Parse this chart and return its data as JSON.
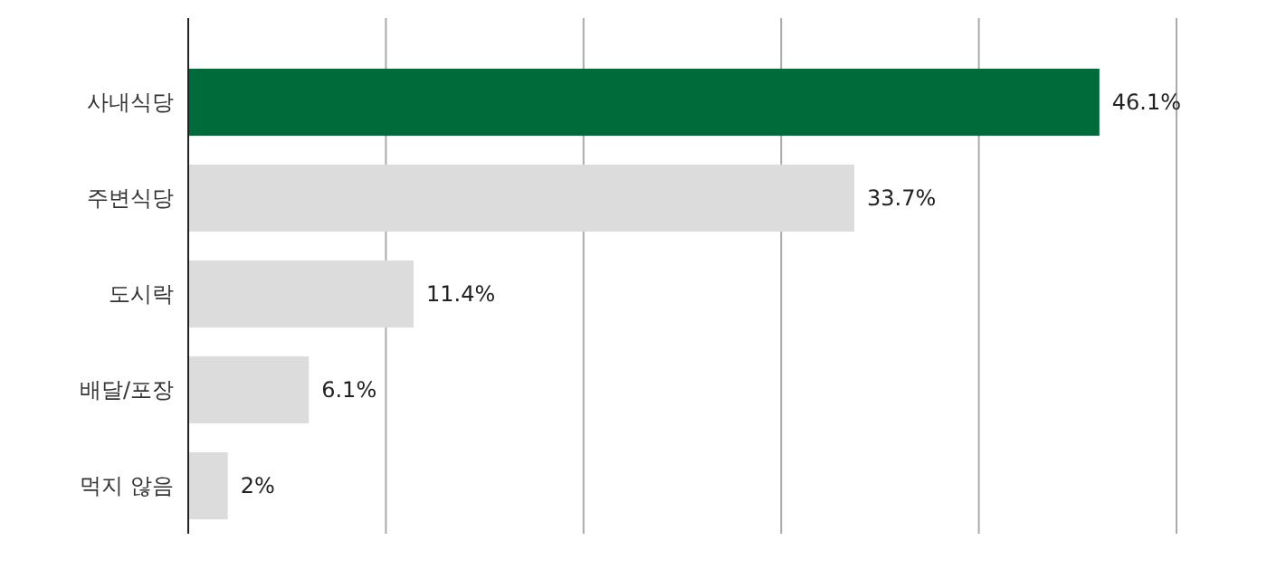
{
  "chart_data": {
    "type": "bar",
    "orientation": "horizontal",
    "categories": [
      "사내식당",
      "주변식당",
      "도시락",
      "배달/포장",
      "먹지 않음"
    ],
    "values": [
      46.1,
      33.7,
      11.4,
      6.1,
      2
    ],
    "colors": [
      "#006b3a",
      "#dcdcdc",
      "#dcdcdc",
      "#dcdcdc",
      "#dcdcdc"
    ],
    "value_labels": [
      "46.1%",
      "33.7%",
      "11.4%",
      "6.1%",
      "2%"
    ],
    "xlim": [
      0,
      50
    ],
    "xticks": [
      {
        "value": 0,
        "label": null
      },
      {
        "value": 10,
        "label": null
      },
      {
        "value": 20,
        "label": null
      },
      {
        "value": 30,
        "label": null
      },
      {
        "value": 40,
        "label": null
      },
      {
        "value": 50,
        "label": null
      }
    ],
    "grid": "x",
    "tick_labels": "y"
  }
}
